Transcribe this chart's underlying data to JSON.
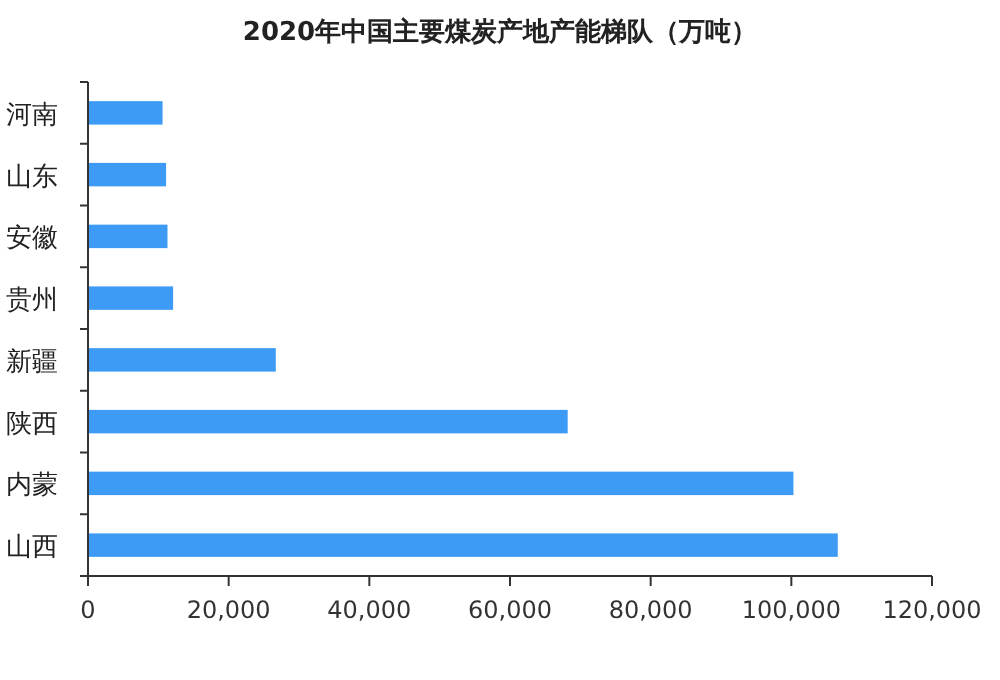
{
  "chart_data": {
    "type": "bar",
    "orientation": "horizontal",
    "title": "2020年中国主要煤炭产地产能梯队（万吨）",
    "categories": [
      "河南",
      "山东",
      "安徽",
      "贵州",
      "新疆",
      "陕西",
      "内蒙",
      "山西"
    ],
    "values": [
      10600,
      11100,
      11300,
      12100,
      26700,
      68200,
      100300,
      106600
    ],
    "color": "#3d9bf5",
    "xlim": [
      0,
      120000
    ],
    "xticks": [
      {
        "value": 0,
        "label": "0"
      },
      {
        "value": 20000,
        "label": "20,000"
      },
      {
        "value": 40000,
        "label": "40,000"
      },
      {
        "value": 60000,
        "label": "60,000"
      },
      {
        "value": 80000,
        "label": "80,000"
      },
      {
        "value": 100000,
        "label": "100,000"
      },
      {
        "value": 120000,
        "label": "120,000"
      }
    ],
    "grid": false
  }
}
